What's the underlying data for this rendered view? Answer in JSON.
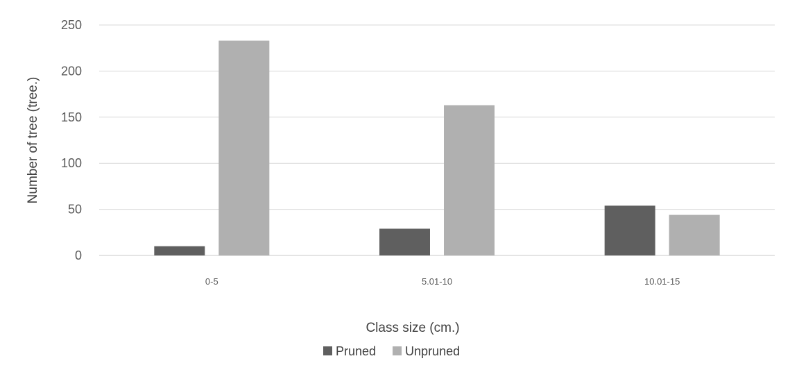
{
  "chart_data": {
    "type": "bar",
    "title": "",
    "xlabel": "Class size (cm.)",
    "ylabel": "Number of tree (tree.)",
    "categories": [
      "0-5",
      "5.01-10",
      "10.01-15"
    ],
    "series": [
      {
        "name": "Pruned",
        "values": [
          10,
          29,
          54
        ],
        "color": "#5f5f5f"
      },
      {
        "name": "Unpruned",
        "values": [
          233,
          163,
          44
        ],
        "color": "#b0b0b0"
      }
    ],
    "ylim": [
      0,
      250
    ],
    "yticks": [
      0,
      50,
      100,
      150,
      200,
      250
    ],
    "grid": true,
    "legend_position": "bottom"
  }
}
